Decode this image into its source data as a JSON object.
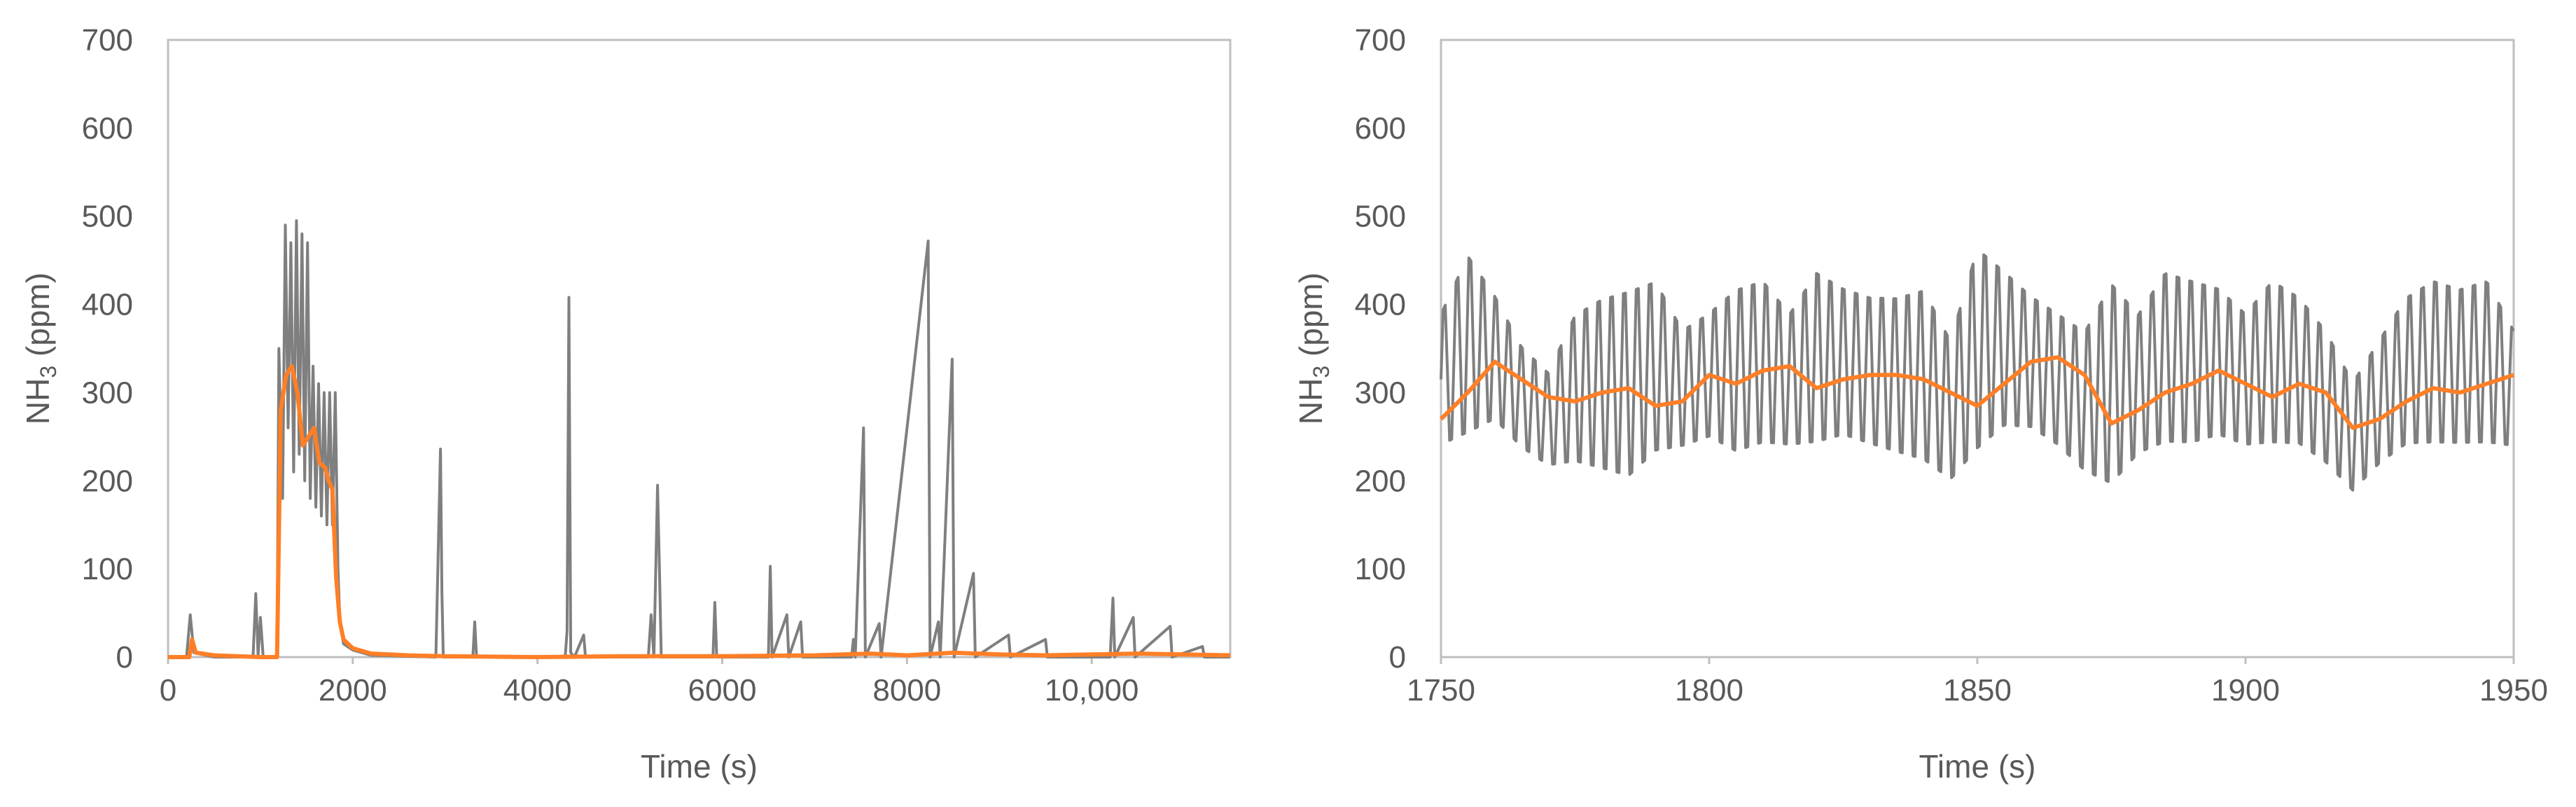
{
  "chart_data": [
    {
      "type": "line",
      "xlabel": "Time (s)",
      "ylabel": "NH3 (ppm)",
      "ylabel_parts": {
        "pre": "NH",
        "sub": "3",
        "post": " (ppm)"
      },
      "xlim": [
        0,
        11500
      ],
      "ylim": [
        0,
        700
      ],
      "x_ticks": [
        0,
        2000,
        4000,
        6000,
        8000,
        10000
      ],
      "x_tick_labels": [
        "0",
        "2000",
        "4000",
        "6000",
        "8000",
        "10,000"
      ],
      "y_ticks": [
        0,
        100,
        200,
        300,
        400,
        500,
        600,
        700
      ],
      "y_tick_labels": [
        "0",
        "100",
        "200",
        "300",
        "400",
        "500",
        "600",
        "700"
      ],
      "grid": false,
      "series": [
        {
          "color": "#7f7f7f",
          "points": [
            [
              0,
              0
            ],
            [
              200,
              0
            ],
            [
              240,
              48
            ],
            [
              280,
              5
            ],
            [
              500,
              0
            ],
            [
              920,
              0
            ],
            [
              950,
              72
            ],
            [
              975,
              2
            ],
            [
              1000,
              45
            ],
            [
              1030,
              0
            ],
            [
              1180,
              0
            ],
            [
              1200,
              350
            ],
            [
              1240,
              180
            ],
            [
              1270,
              490
            ],
            [
              1300,
              260
            ],
            [
              1330,
              470
            ],
            [
              1360,
              210
            ],
            [
              1390,
              495
            ],
            [
              1420,
              230
            ],
            [
              1450,
              480
            ],
            [
              1480,
              200
            ],
            [
              1510,
              470
            ],
            [
              1540,
              180
            ],
            [
              1570,
              330
            ],
            [
              1600,
              170
            ],
            [
              1630,
              310
            ],
            [
              1660,
              160
            ],
            [
              1690,
              300
            ],
            [
              1720,
              150
            ],
            [
              1750,
              300
            ],
            [
              1780,
              150
            ],
            [
              1810,
              300
            ],
            [
              1840,
              100
            ],
            [
              1860,
              40
            ],
            [
              1900,
              15
            ],
            [
              2000,
              8
            ],
            [
              2200,
              2
            ],
            [
              2900,
              0
            ],
            [
              2950,
              236
            ],
            [
              2965,
              75
            ],
            [
              2980,
              0
            ],
            [
              3300,
              0
            ],
            [
              3320,
              40
            ],
            [
              3340,
              0
            ],
            [
              4300,
              0
            ],
            [
              4320,
              30
            ],
            [
              4340,
              408
            ],
            [
              4360,
              5
            ],
            [
              4400,
              0
            ],
            [
              4500,
              25
            ],
            [
              4520,
              0
            ],
            [
              5200,
              0
            ],
            [
              5230,
              48
            ],
            [
              5260,
              0
            ],
            [
              5300,
              195
            ],
            [
              5320,
              100
            ],
            [
              5340,
              0
            ],
            [
              5900,
              0
            ],
            [
              5920,
              62
            ],
            [
              5940,
              0
            ],
            [
              6500,
              0
            ],
            [
              6520,
              103
            ],
            [
              6540,
              0
            ],
            [
              6700,
              48
            ],
            [
              6720,
              0
            ],
            [
              6850,
              40
            ],
            [
              6870,
              0
            ],
            [
              7400,
              0
            ],
            [
              7420,
              20
            ],
            [
              7440,
              0
            ],
            [
              7530,
              260
            ],
            [
              7550,
              0
            ],
            [
              7700,
              38
            ],
            [
              7720,
              0
            ],
            [
              8230,
              472
            ],
            [
              8250,
              0
            ],
            [
              8340,
              40
            ],
            [
              8360,
              0
            ],
            [
              8490,
              338
            ],
            [
              8510,
              0
            ],
            [
              8720,
              95
            ],
            [
              8740,
              0
            ],
            [
              9100,
              25
            ],
            [
              9120,
              0
            ],
            [
              9500,
              20
            ],
            [
              9520,
              0
            ],
            [
              10200,
              0
            ],
            [
              10230,
              67
            ],
            [
              10250,
              0
            ],
            [
              10450,
              45
            ],
            [
              10470,
              0
            ],
            [
              10850,
              35
            ],
            [
              10870,
              0
            ],
            [
              11200,
              12
            ],
            [
              11220,
              0
            ],
            [
              11500,
              0
            ]
          ]
        },
        {
          "color": "#ff7f27",
          "points": [
            [
              0,
              0
            ],
            [
              230,
              0
            ],
            [
              260,
              20
            ],
            [
              300,
              5
            ],
            [
              500,
              2
            ],
            [
              1000,
              0
            ],
            [
              1180,
              0
            ],
            [
              1220,
              280
            ],
            [
              1280,
              320
            ],
            [
              1340,
              330
            ],
            [
              1400,
              300
            ],
            [
              1460,
              240
            ],
            [
              1520,
              250
            ],
            [
              1580,
              260
            ],
            [
              1640,
              220
            ],
            [
              1700,
              215
            ],
            [
              1740,
              200
            ],
            [
              1780,
              190
            ],
            [
              1820,
              90
            ],
            [
              1860,
              40
            ],
            [
              1900,
              20
            ],
            [
              2000,
              10
            ],
            [
              2200,
              4
            ],
            [
              2600,
              2
            ],
            [
              3000,
              1
            ],
            [
              4000,
              0
            ],
            [
              5000,
              1
            ],
            [
              6000,
              1
            ],
            [
              7000,
              2
            ],
            [
              7600,
              4
            ],
            [
              8000,
              2
            ],
            [
              8500,
              5
            ],
            [
              9000,
              3
            ],
            [
              9500,
              2
            ],
            [
              10000,
              3
            ],
            [
              10500,
              4
            ],
            [
              11000,
              3
            ],
            [
              11500,
              2
            ]
          ]
        }
      ]
    },
    {
      "type": "line",
      "xlabel": "Time (s)",
      "ylabel": "NH3 (ppm)",
      "ylabel_parts": {
        "pre": "NH",
        "sub": "3",
        "post": " (ppm)"
      },
      "xlim": [
        1750,
        1950
      ],
      "ylim": [
        0,
        700
      ],
      "x_ticks": [
        1750,
        1800,
        1850,
        1900,
        1950
      ],
      "x_tick_labels": [
        "1750",
        "1800",
        "1850",
        "1900",
        "1950"
      ],
      "y_ticks": [
        0,
        100,
        200,
        300,
        400,
        500,
        600,
        700
      ],
      "y_tick_labels": [
        "0",
        "100",
        "200",
        "300",
        "400",
        "500",
        "600",
        "700"
      ],
      "grid": false,
      "series": [
        {
          "color": "#7f7f7f",
          "oscillation_period_s": 2.4,
          "upper_envelope": [
            [
              1750,
              400
            ],
            [
              1755,
              470
            ],
            [
              1760,
              420
            ],
            [
              1765,
              360
            ],
            [
              1770,
              330
            ],
            [
              1775,
              400
            ],
            [
              1780,
              420
            ],
            [
              1785,
              430
            ],
            [
              1790,
              440
            ],
            [
              1795,
              380
            ],
            [
              1800,
              400
            ],
            [
              1805,
              430
            ],
            [
              1810,
              440
            ],
            [
              1815,
              400
            ],
            [
              1820,
              450
            ],
            [
              1825,
              430
            ],
            [
              1830,
              420
            ],
            [
              1835,
              420
            ],
            [
              1840,
              430
            ],
            [
              1845,
              370
            ],
            [
              1850,
              480
            ],
            [
              1855,
              450
            ],
            [
              1860,
              420
            ],
            [
              1865,
              400
            ],
            [
              1870,
              380
            ],
            [
              1875,
              440
            ],
            [
              1880,
              400
            ],
            [
              1885,
              450
            ],
            [
              1890,
              440
            ],
            [
              1895,
              430
            ],
            [
              1900,
              400
            ],
            [
              1905,
              440
            ],
            [
              1910,
              420
            ],
            [
              1915,
              380
            ],
            [
              1920,
              320
            ],
            [
              1925,
              370
            ],
            [
              1930,
              420
            ],
            [
              1935,
              440
            ],
            [
              1940,
              430
            ],
            [
              1945,
              440
            ],
            [
              1950,
              380
            ]
          ],
          "lower_envelope": [
            [
              1750,
              230
            ],
            [
              1755,
              240
            ],
            [
              1760,
              260
            ],
            [
              1765,
              230
            ],
            [
              1770,
              210
            ],
            [
              1775,
              210
            ],
            [
              1780,
              200
            ],
            [
              1785,
              190
            ],
            [
              1790,
              220
            ],
            [
              1795,
              230
            ],
            [
              1800,
              240
            ],
            [
              1805,
              220
            ],
            [
              1810,
              230
            ],
            [
              1815,
              230
            ],
            [
              1820,
              230
            ],
            [
              1825,
              240
            ],
            [
              1830,
              230
            ],
            [
              1835,
              220
            ],
            [
              1840,
              210
            ],
            [
              1845,
              190
            ],
            [
              1850,
              220
            ],
            [
              1855,
              250
            ],
            [
              1860,
              250
            ],
            [
              1865,
              230
            ],
            [
              1870,
              200
            ],
            [
              1875,
              180
            ],
            [
              1880,
              220
            ],
            [
              1885,
              230
            ],
            [
              1890,
              230
            ],
            [
              1895,
              240
            ],
            [
              1900,
              230
            ],
            [
              1905,
              230
            ],
            [
              1910,
              230
            ],
            [
              1915,
              210
            ],
            [
              1920,
              180
            ],
            [
              1925,
              210
            ],
            [
              1930,
              230
            ],
            [
              1935,
              230
            ],
            [
              1940,
              230
            ],
            [
              1945,
              230
            ],
            [
              1950,
              230
            ]
          ]
        },
        {
          "color": "#ff7f27",
          "points": [
            [
              1750,
              270
            ],
            [
              1755,
              300
            ],
            [
              1760,
              335
            ],
            [
              1765,
              315
            ],
            [
              1770,
              295
            ],
            [
              1775,
              290
            ],
            [
              1780,
              300
            ],
            [
              1785,
              305
            ],
            [
              1790,
              285
            ],
            [
              1795,
              290
            ],
            [
              1800,
              320
            ],
            [
              1805,
              310
            ],
            [
              1810,
              325
            ],
            [
              1815,
              330
            ],
            [
              1820,
              305
            ],
            [
              1825,
              315
            ],
            [
              1830,
              320
            ],
            [
              1835,
              320
            ],
            [
              1840,
              315
            ],
            [
              1845,
              300
            ],
            [
              1850,
              285
            ],
            [
              1855,
              310
            ],
            [
              1860,
              335
            ],
            [
              1865,
              340
            ],
            [
              1870,
              320
            ],
            [
              1875,
              265
            ],
            [
              1880,
              280
            ],
            [
              1885,
              300
            ],
            [
              1890,
              310
            ],
            [
              1895,
              325
            ],
            [
              1900,
              310
            ],
            [
              1905,
              295
            ],
            [
              1910,
              310
            ],
            [
              1915,
              300
            ],
            [
              1920,
              260
            ],
            [
              1925,
              270
            ],
            [
              1930,
              290
            ],
            [
              1935,
              305
            ],
            [
              1940,
              300
            ],
            [
              1945,
              310
            ],
            [
              1950,
              320
            ]
          ]
        }
      ]
    }
  ]
}
